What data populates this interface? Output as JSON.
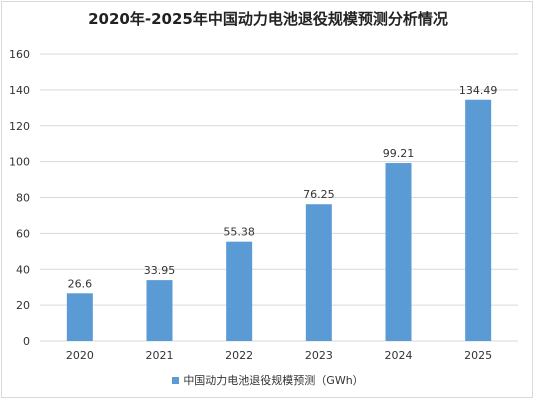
{
  "chart_data": {
    "type": "bar",
    "title": "2020年-2025年中国动力电池退役规模预测分析情况",
    "categories": [
      "2020",
      "2021",
      "2022",
      "2023",
      "2024",
      "2025"
    ],
    "series": [
      {
        "name": "中国动力电池退役规模预测（GWh）",
        "values": [
          26.6,
          33.95,
          55.38,
          76.25,
          99.21,
          134.49
        ],
        "labels": [
          "26.6",
          "33.95",
          "55.38",
          "76.25",
          "99.21",
          "134.49"
        ],
        "color": "#5b9bd5"
      }
    ],
    "ylim": [
      0,
      160
    ],
    "yticks": [
      "0",
      "20",
      "40",
      "60",
      "80",
      "100",
      "120",
      "140",
      "160"
    ],
    "grid": true,
    "legend": "bottom"
  }
}
